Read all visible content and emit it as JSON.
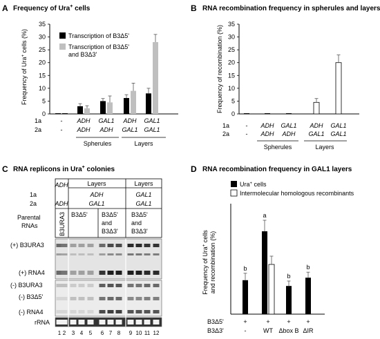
{
  "panels": {
    "A": {
      "letter": "A",
      "title": "Frequency of Ura",
      "title_sup": "+",
      "title_tail": " cells"
    },
    "B": {
      "letter": "B",
      "title": "RNA recombination frequency in spherules and layers"
    },
    "C": {
      "letter": "C",
      "title": "RNA replicons in Ura",
      "title_sup": "+",
      "title_tail": " colonies"
    },
    "D": {
      "letter": "D",
      "title": "RNA recombination frequency in GAL1 layers"
    }
  },
  "panelA": {
    "ylabel_main": "Frequency of Ura",
    "ylabel_sup": "+",
    "ylabel_tail": " cells (%)",
    "legend": {
      "l1": "Transcription of B3Δ5'",
      "l2a": "Transcription of B3Δ5'",
      "l2b": "and B3Δ3'"
    },
    "row1_label": "1a",
    "row2_label": "2a",
    "row1": [
      "-",
      "ADH",
      "GAL1",
      "ADH",
      "GAL1"
    ],
    "row2": [
      "-",
      "ADH",
      "ADH",
      "GAL1",
      "GAL1"
    ],
    "group1": "Spherules",
    "group2": "Layers"
  },
  "panelB": {
    "ylabel": "Frequency of recombination (%)",
    "row1_label": "1a",
    "row2_label": "2a",
    "row1": [
      "-",
      "ADH",
      "GAL1",
      "ADH",
      "GAL1"
    ],
    "row2": [
      "-",
      "ADH",
      "ADH",
      "GAL1",
      "GAL1"
    ],
    "group1": "Spherules",
    "group2": "Layers"
  },
  "panelC": {
    "row1_label": "1a",
    "row2_label": "2a",
    "row3_label_a": "Parental",
    "row3_label_b": "RNAs",
    "h_layers1": "Layers",
    "h_layers2": "Layers",
    "col1_1a": "ADH",
    "col1_2a": "ADH",
    "col2_1a": "ADH",
    "col2_2a": "GAL1",
    "col3_1a": "GAL1",
    "col3_2a": "GAL1",
    "rna_b3ura3": "B3URA3",
    "rna_b3d5": "B3Δ5'",
    "rna_both_a": "B3Δ5'",
    "rna_both_b": "and",
    "rna_both_c": "B3Δ3'",
    "rna_both2_a": "B3Δ5'",
    "rna_both2_b": "and",
    "rna_both2_c": "B3Δ3'",
    "band_plus_b3ura3": "(+) B3URA3",
    "band_plus_rna4": "(+) RNA4",
    "band_minus_b3ura3": "(-) B3URA3",
    "band_minus_b3d5": "(-) B3Δ5'",
    "band_minus_rna4": "(-) RNA4",
    "band_rrna": "rRNA",
    "lanes": [
      "1",
      "2",
      "3",
      "4",
      "5",
      "6",
      "7",
      "8",
      "9",
      "10",
      "11",
      "12"
    ]
  },
  "panelD": {
    "ylabel_l1": "Frequency of Ura",
    "ylabel_sup": "+",
    "ylabel_l1_tail": " cells",
    "ylabel_l2": "and recombination (%)",
    "legend": {
      "l1": "Ura",
      "l1_sup": "+",
      "l1_tail": " cells",
      "l2": "Intermolecular homologous recombinants"
    },
    "row1_label": "B3Δ5'",
    "row2_label": "B3Δ3'",
    "row1": [
      "+",
      "+",
      "+",
      "+"
    ],
    "row2": [
      "-",
      "WT",
      "Δbox B",
      "ΔIR"
    ],
    "sig": [
      "b",
      "a",
      "b",
      "b"
    ]
  },
  "chart_data": [
    {
      "type": "bar",
      "panel": "A",
      "categories": [
        "-/-",
        "ADH/ADH",
        "GAL1/ADH",
        "ADH/GAL1",
        "GAL1/GAL1"
      ],
      "series": [
        {
          "name": "Transcription of B3Δ5'",
          "values": [
            0,
            3,
            5,
            6.2,
            8
          ],
          "errors": [
            0,
            1,
            1,
            1.3,
            2
          ]
        },
        {
          "name": "Transcription of B3Δ5' and B3Δ3'",
          "values": [
            0,
            2.2,
            4.5,
            9,
            28
          ],
          "errors": [
            0,
            1,
            2.5,
            3,
            3
          ]
        }
      ],
      "ylim": [
        0,
        35
      ],
      "yticks": [
        "0",
        "5",
        "10",
        "15",
        "20",
        "25",
        "30",
        "35"
      ],
      "colors": [
        "#000000",
        "#bfbfbf"
      ]
    },
    {
      "type": "bar",
      "panel": "B",
      "categories": [
        "-/-",
        "ADH/ADH",
        "GAL1/ADH",
        "ADH/GAL1",
        "GAL1/GAL1"
      ],
      "series": [
        {
          "values": [
            0,
            0,
            0,
            4.5,
            20
          ],
          "errors": [
            0,
            0,
            0,
            1.5,
            3
          ]
        }
      ],
      "ylim": [
        0,
        35
      ],
      "yticks": [
        "0",
        "5",
        "10",
        "15",
        "20",
        "25",
        "30",
        "35"
      ]
    },
    {
      "type": "bar",
      "panel": "D",
      "categories": [
        "-",
        "WT",
        "Δbox B",
        "ΔIR"
      ],
      "series": [
        {
          "name": "Ura+ cells",
          "values": [
            12.3,
            30,
            10.2,
            13.2
          ],
          "errors": [
            2.5,
            4,
            1.8,
            2
          ]
        },
        {
          "name": "Intermolecular homologous recombinants",
          "values": [
            null,
            18,
            null,
            null
          ],
          "errors": [
            null,
            3,
            null,
            null
          ]
        }
      ],
      "ylim": [
        0,
        40
      ]
    }
  ]
}
